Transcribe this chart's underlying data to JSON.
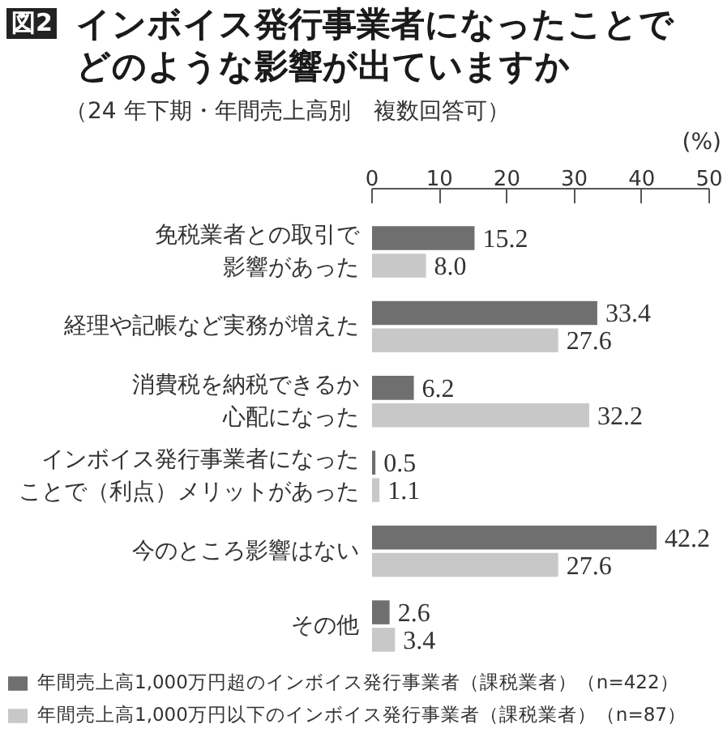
{
  "chart_data": {
    "type": "bar",
    "orientation": "horizontal",
    "title": "インボイス発行事業者になったことでどのような影響が出ていますか",
    "subtitle": "（24 年下期・年間売上高別　複数回答可）",
    "xlabel": "(%)",
    "annotations": [
      "図2"
    ],
    "categories": [
      "免税業者との取引で影響があった",
      "経理や記帳など実務が増えた",
      "消費税を納税できるか心配になった",
      "インボイス発行事業者になったことで（利点）メリットがあった",
      "今のところ影響はない",
      "その他"
    ],
    "series": [
      {
        "name": "年間売上高1,000万円超のインボイス発行事業者（課税業者）（n=422）",
        "color": "#6f6f6f",
        "values": [
          15.2,
          33.4,
          6.2,
          0.5,
          42.2,
          2.6
        ],
        "value_labels": [
          "15.2",
          "33.4",
          "6.2",
          "0.5",
          "42.2",
          "2.6"
        ]
      },
      {
        "name": "年間売上高1,000万円以下のインボイス発行事業者（課税業者）（n=87）",
        "color": "#c8c8c8",
        "values": [
          8.0,
          27.6,
          32.2,
          1.1,
          27.6,
          3.4
        ],
        "value_labels": [
          "8.0",
          "27.6",
          "32.2",
          "1.1",
          "27.6",
          "3.4"
        ]
      }
    ],
    "xlim": [
      0,
      50
    ],
    "xticks": [
      0,
      10,
      20,
      30,
      40,
      50
    ],
    "legend": "bottom"
  }
}
